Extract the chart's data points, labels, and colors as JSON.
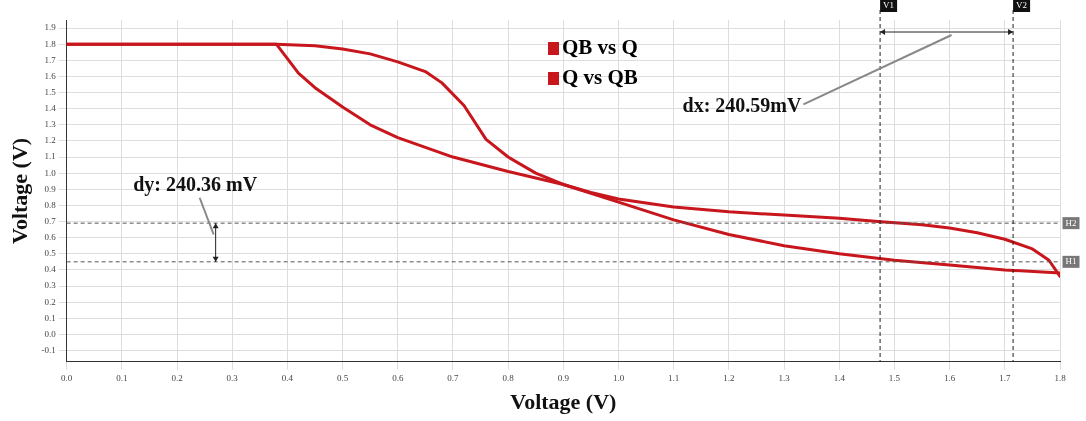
{
  "chart_data": {
    "type": "line",
    "xlabel": "Voltage (V)",
    "ylabel": "Voltage (V)",
    "xlim": [
      0,
      1.8
    ],
    "xticks": [
      {
        "value": 0,
        "label": "0.0"
      },
      0.1,
      0.2,
      0.3,
      0.4,
      0.5,
      0.6,
      0.7,
      0.8,
      0.9,
      {
        "value": 1,
        "label": "1.0"
      },
      1.1,
      1.2,
      1.3,
      1.4,
      1.5,
      1.6,
      1.7,
      1.8
    ],
    "ylim": [
      -0.17,
      1.95
    ],
    "yticks": [
      -0.1,
      {
        "value": 0,
        "label": "0.0"
      },
      0.1,
      0.2,
      0.3,
      0.4,
      0.5,
      0.6,
      0.7,
      0.8,
      0.9,
      {
        "value": 1,
        "label": "1.0"
      },
      1.1,
      1.2,
      1.3,
      1.4,
      1.5,
      1.6,
      1.7,
      1.8,
      1.9
    ],
    "grid": true,
    "legend": "top",
    "marker": "none",
    "line_style": "solid",
    "series": [
      {
        "name": "QB vs Q",
        "color": "#c8161d",
        "x": [
          0,
          0.38,
          0.45,
          0.5,
          0.55,
          0.6,
          0.65,
          0.68,
          0.72,
          0.76,
          0.8,
          0.85,
          0.9,
          0.95,
          1.0,
          1.1,
          1.2,
          1.3,
          1.4,
          1.47,
          1.55,
          1.6,
          1.65,
          1.7,
          1.75,
          1.78,
          1.8
        ],
        "values": [
          1.8,
          1.8,
          1.79,
          1.77,
          1.74,
          1.69,
          1.63,
          1.56,
          1.42,
          1.21,
          1.1,
          1.0,
          0.93,
          0.88,
          0.84,
          0.79,
          0.76,
          0.74,
          0.72,
          0.7,
          0.68,
          0.66,
          0.63,
          0.59,
          0.53,
          0.46,
          0.36
        ]
      },
      {
        "name": "Q vs QB",
        "color": "#c8161d",
        "x": [
          0,
          0.38,
          0.42,
          0.45,
          0.5,
          0.55,
          0.6,
          0.7,
          0.8,
          0.9,
          1.0,
          1.1,
          1.2,
          1.3,
          1.4,
          1.5,
          1.6,
          1.7,
          1.8
        ],
        "values": [
          1.8,
          1.8,
          1.62,
          1.53,
          1.41,
          1.3,
          1.22,
          1.1,
          1.01,
          0.93,
          0.82,
          0.71,
          0.62,
          0.55,
          0.5,
          0.46,
          0.43,
          0.4,
          0.38
        ]
      }
    ],
    "ref_lines": [
      {
        "axis": "y",
        "value": 0.45,
        "label": "H1",
        "color": "#555555",
        "line_style": "dashed"
      },
      {
        "axis": "y",
        "value": 0.69,
        "label": "H2",
        "color": "#555555",
        "line_style": "dashed"
      },
      {
        "axis": "x",
        "value": 1.474,
        "label": "V1",
        "color": "#222222",
        "line_style": "dashed"
      },
      {
        "axis": "x",
        "value": 1.715,
        "label": "V2",
        "color": "#222222",
        "line_style": "dashed"
      }
    ],
    "annotations": [
      "dy: 240.36 mV",
      "dx: 240.59mV"
    ]
  }
}
